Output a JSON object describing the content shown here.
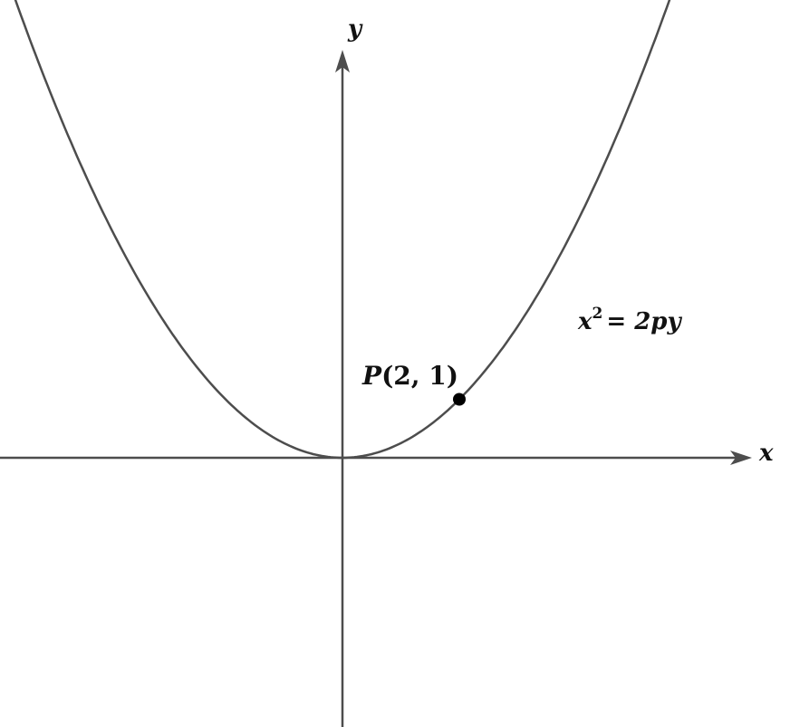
{
  "diagram": {
    "axes": {
      "x_label": "x",
      "y_label": "y"
    },
    "curve": {
      "equation_base": "x",
      "equation_exponent": "2",
      "equation_rhs": "= 2py",
      "p": 2
    },
    "point": {
      "name": "P",
      "coords": "(2, 1)",
      "x": 2,
      "y": 1
    },
    "colors": {
      "line": "#4d4d4d",
      "point": "#000000",
      "text": "#111111"
    }
  }
}
